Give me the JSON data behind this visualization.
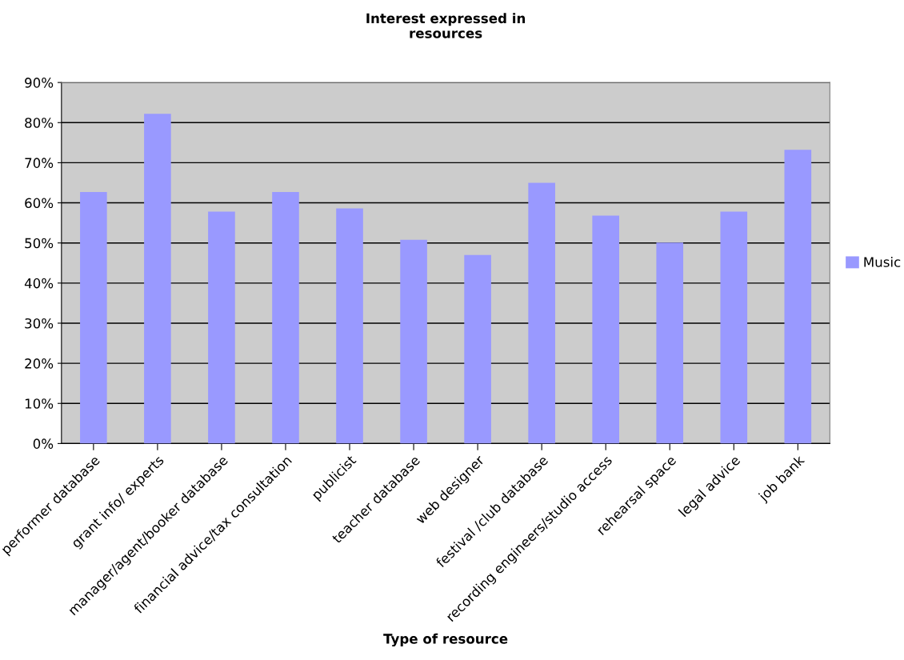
{
  "chart_data": {
    "type": "bar",
    "title": "Interest expressed in\nresources",
    "xlabel": "Type of resource",
    "categories": [
      "performer database",
      "grant info/ experts",
      "manager/agent/booker database",
      "financial advice/tax consultation",
      "publicist",
      "teacher database",
      "web designer",
      "festival /club database",
      "recording engineers/studio access",
      "rehearsal space",
      "legal advice",
      "job bank"
    ],
    "series": [
      {
        "name": "Music",
        "color": "#9999ff",
        "values": [
          62.7,
          82.2,
          57.8,
          62.7,
          58.6,
          50.8,
          47.0,
          65.0,
          56.8,
          50.1,
          57.8,
          73.2
        ]
      }
    ],
    "ylim": [
      0,
      90
    ],
    "yticks": [
      {
        "value": 0,
        "label": "0%"
      },
      {
        "value": 10,
        "label": "10%"
      },
      {
        "value": 20,
        "label": "20%"
      },
      {
        "value": 30,
        "label": "30%"
      },
      {
        "value": 40,
        "label": "40%"
      },
      {
        "value": 50,
        "label": "50%"
      },
      {
        "value": 60,
        "label": "60%"
      },
      {
        "value": 70,
        "label": "70%"
      },
      {
        "value": 80,
        "label": "80%"
      },
      {
        "value": 90,
        "label": "90%"
      }
    ],
    "grid": "y",
    "legend": "right"
  }
}
